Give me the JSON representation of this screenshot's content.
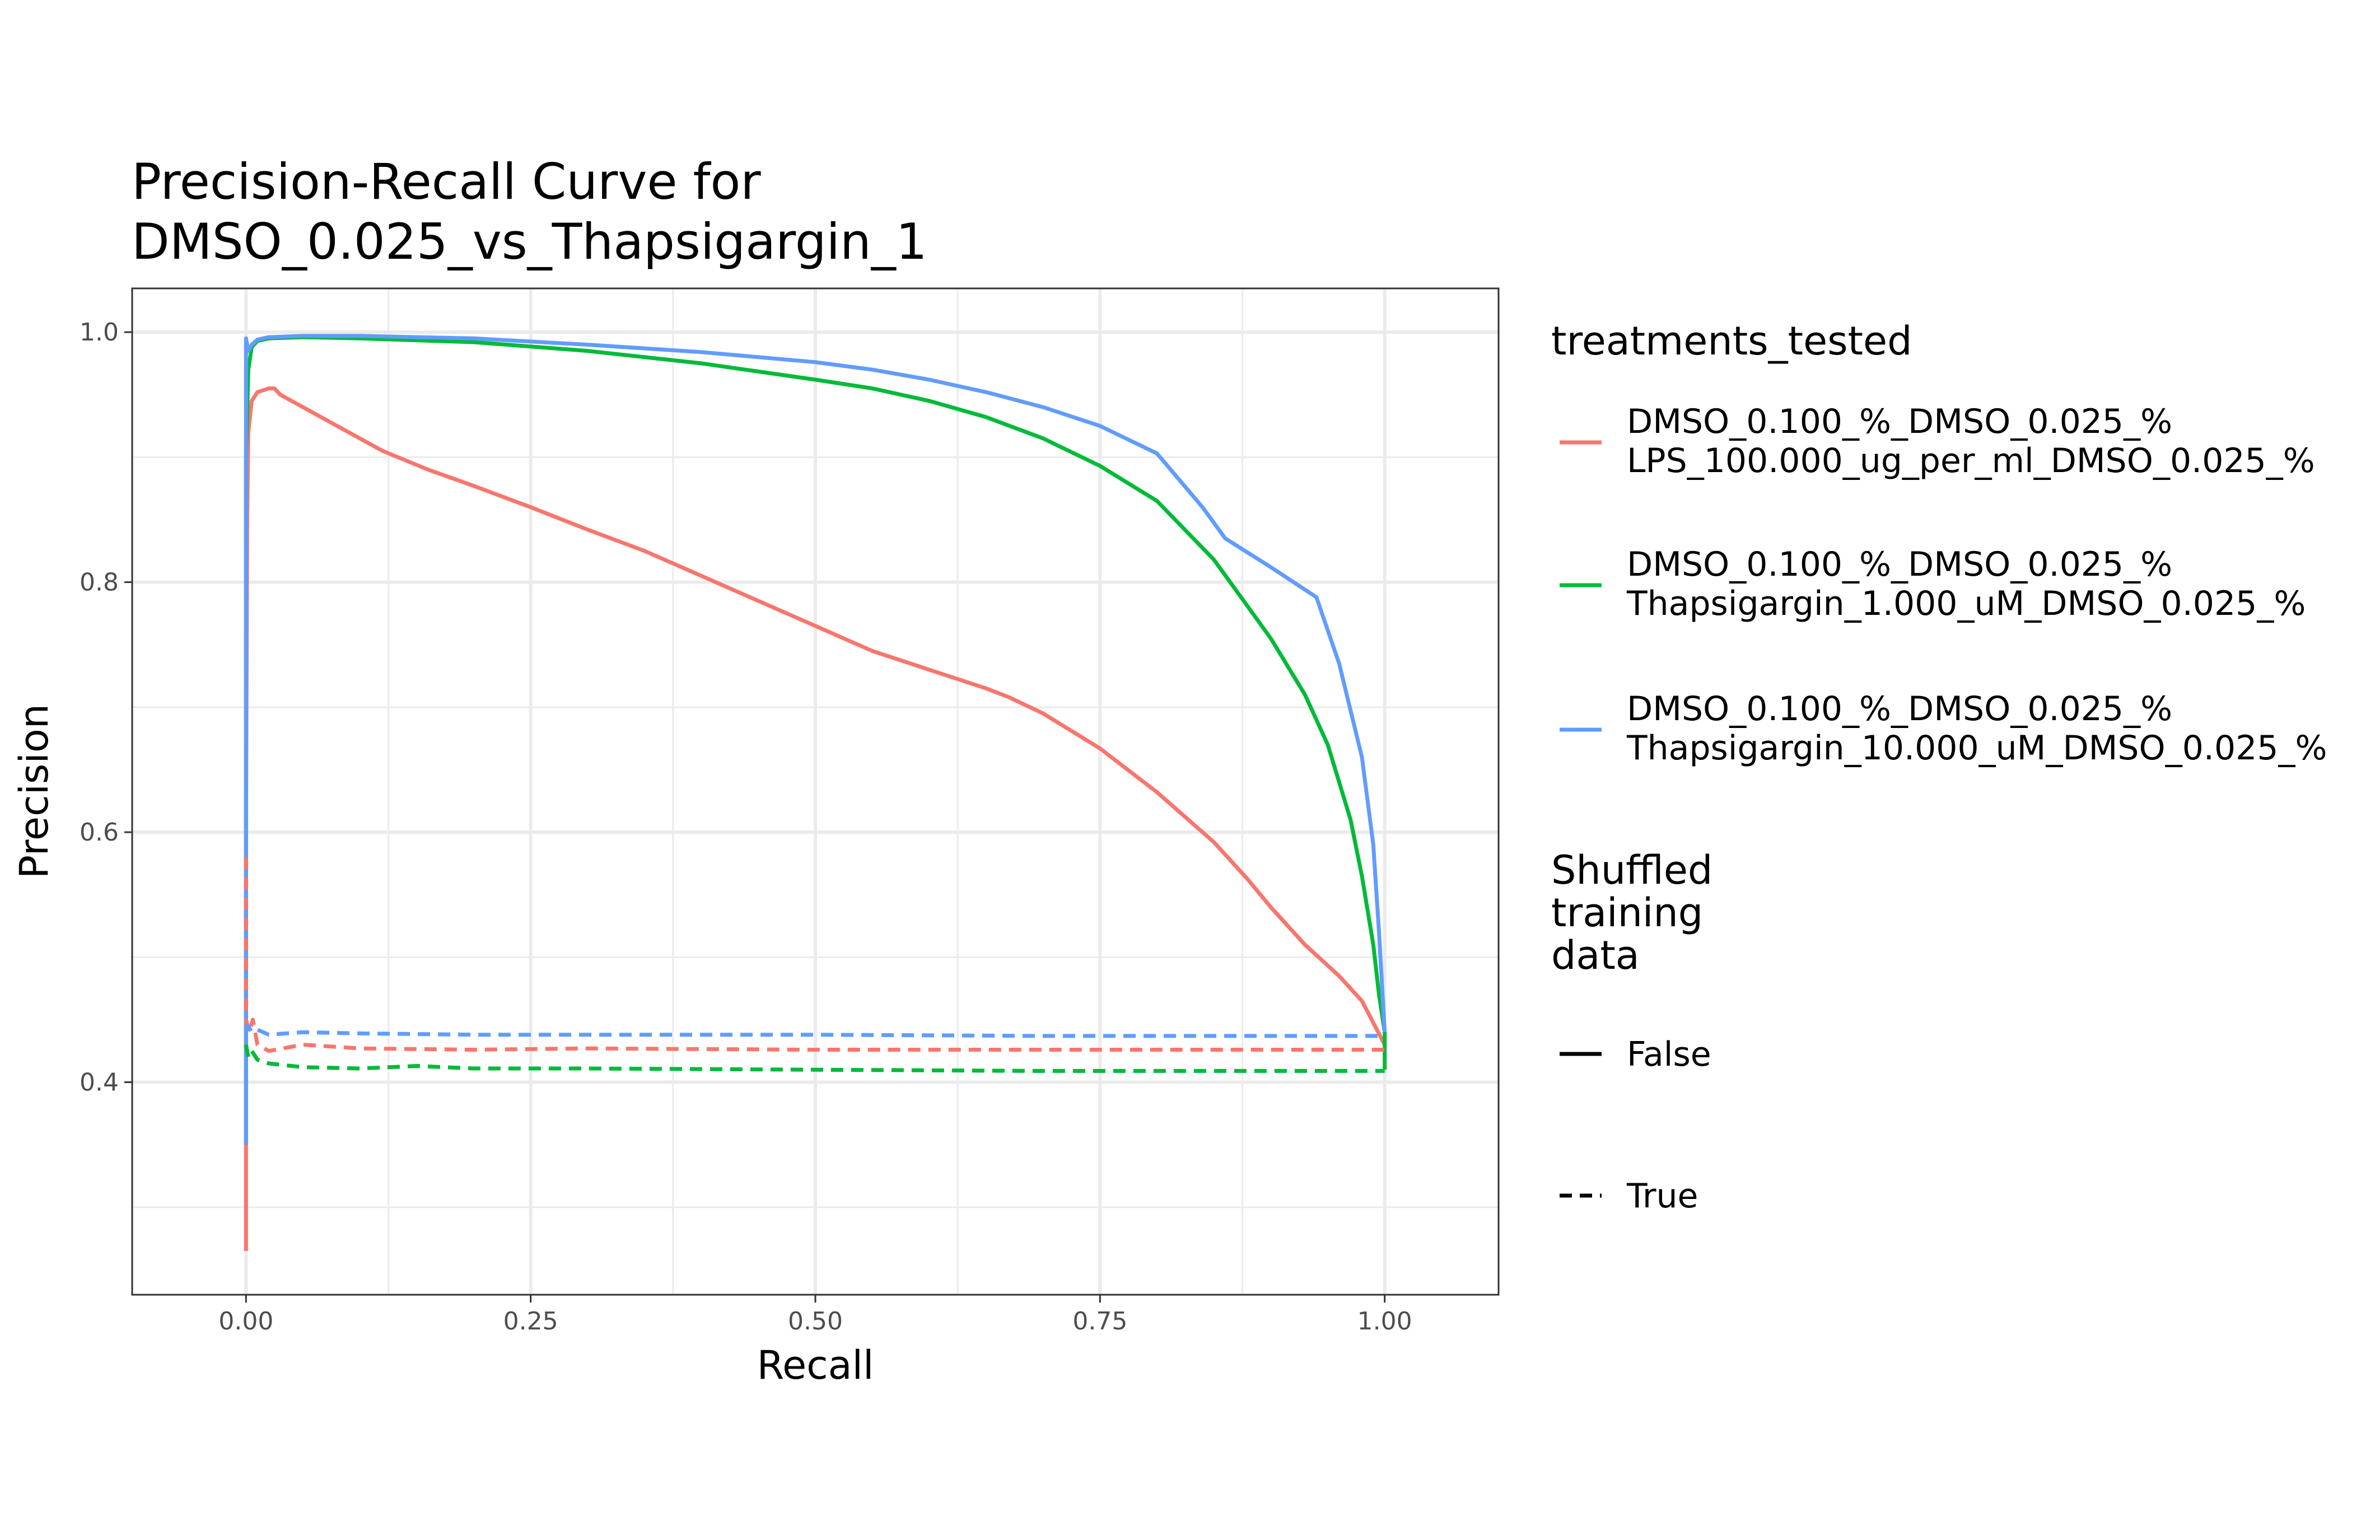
{
  "chart_data": {
    "type": "line",
    "title": [
      "Precision-Recall Curve for",
      "DMSO_0.025_vs_Thapsigargin_1"
    ],
    "xlabel": "Recall",
    "ylabel": "Precision",
    "xlim": [
      -0.1,
      1.1
    ],
    "ylim": [
      0.23,
      1.035
    ],
    "x_ticks": [
      0.0,
      0.25,
      0.5,
      0.75,
      1.0
    ],
    "x_tick_labels": [
      "0.00",
      "0.25",
      "0.50",
      "0.75",
      "1.00"
    ],
    "y_ticks": [
      0.4,
      0.6,
      0.8,
      1.0
    ],
    "y_tick_labels": [
      "0.4",
      "0.6",
      "0.8",
      "1.0"
    ],
    "grid": true,
    "legend": {
      "placement": "right",
      "color_title": "treatments_tested",
      "color_entries": [
        {
          "lines": [
            "DMSO_0.100_%_DMSO_0.025_%",
            "LPS_100.000_ug_per_ml_DMSO_0.025_%"
          ],
          "color": "#F8766D"
        },
        {
          "lines": [
            "DMSO_0.100_%_DMSO_0.025_%",
            "Thapsigargin_1.000_uM_DMSO_0.025_%"
          ],
          "color": "#00BA38"
        },
        {
          "lines": [
            "DMSO_0.100_%_DMSO_0.025_%",
            "Thapsigargin_10.000_uM_DMSO_0.025_%"
          ],
          "color": "#619CFF"
        }
      ],
      "linetype_title": [
        "Shuffled",
        "training",
        "data"
      ],
      "linetype_entries": [
        {
          "label": "False",
          "dash": "solid"
        },
        {
          "label": "True",
          "dash": "dashed"
        }
      ]
    },
    "series": [
      {
        "treatment": "LPS",
        "shuffled": "False",
        "color": "#F8766D",
        "dash": "solid",
        "x": [
          0.0,
          0.0,
          0.001,
          0.002,
          0.005,
          0.01,
          0.02,
          0.025,
          0.03,
          0.05,
          0.08,
          0.12,
          0.16,
          0.2,
          0.25,
          0.3,
          0.35,
          0.4,
          0.45,
          0.5,
          0.55,
          0.6,
          0.65,
          0.67,
          0.7,
          0.75,
          0.8,
          0.85,
          0.88,
          0.9,
          0.93,
          0.96,
          0.98,
          1.0
        ],
        "y": [
          0.265,
          0.6,
          0.85,
          0.92,
          0.945,
          0.952,
          0.955,
          0.955,
          0.95,
          0.94,
          0.925,
          0.905,
          0.89,
          0.877,
          0.86,
          0.842,
          0.825,
          0.805,
          0.785,
          0.765,
          0.745,
          0.73,
          0.715,
          0.708,
          0.695,
          0.667,
          0.632,
          0.592,
          0.562,
          0.54,
          0.51,
          0.485,
          0.465,
          0.43
        ]
      },
      {
        "treatment": "Thapsigargin 1",
        "shuffled": "False",
        "color": "#00BA38",
        "dash": "solid",
        "x": [
          0.0,
          0.0,
          0.002,
          0.005,
          0.01,
          0.02,
          0.05,
          0.1,
          0.2,
          0.3,
          0.4,
          0.5,
          0.55,
          0.6,
          0.65,
          0.7,
          0.75,
          0.8,
          0.85,
          0.9,
          0.93,
          0.95,
          0.97,
          0.98,
          0.99,
          0.995,
          1.0,
          1.0
        ],
        "y": [
          0.35,
          0.9,
          0.97,
          0.988,
          0.993,
          0.995,
          0.996,
          0.995,
          0.992,
          0.985,
          0.975,
          0.962,
          0.955,
          0.945,
          0.932,
          0.915,
          0.893,
          0.865,
          0.818,
          0.755,
          0.71,
          0.67,
          0.61,
          0.565,
          0.51,
          0.47,
          0.44,
          0.41
        ]
      },
      {
        "treatment": "Thapsigargin 10",
        "shuffled": "False",
        "color": "#619CFF",
        "dash": "solid",
        "x": [
          0.0,
          0.0,
          0.002,
          0.005,
          0.01,
          0.02,
          0.05,
          0.1,
          0.2,
          0.3,
          0.4,
          0.5,
          0.55,
          0.6,
          0.65,
          0.7,
          0.75,
          0.8,
          0.84,
          0.86,
          0.9,
          0.94,
          0.96,
          0.98,
          0.99,
          0.995,
          1.0
        ],
        "y": [
          0.35,
          0.995,
          0.985,
          0.99,
          0.994,
          0.996,
          0.997,
          0.997,
          0.995,
          0.99,
          0.984,
          0.976,
          0.97,
          0.962,
          0.952,
          0.94,
          0.925,
          0.903,
          0.86,
          0.835,
          0.812,
          0.788,
          0.735,
          0.66,
          0.59,
          0.52,
          0.44
        ]
      },
      {
        "treatment": "LPS",
        "shuffled": "True",
        "color": "#F8766D",
        "dash": "dashed",
        "x": [
          0.0,
          0.0,
          0.003,
          0.006,
          0.01,
          0.02,
          0.05,
          0.1,
          0.2,
          0.3,
          0.5,
          0.7,
          0.9,
          1.0
        ],
        "y": [
          0.58,
          0.45,
          0.44,
          0.45,
          0.43,
          0.425,
          0.43,
          0.427,
          0.426,
          0.427,
          0.426,
          0.426,
          0.426,
          0.426
        ]
      },
      {
        "treatment": "Thapsigargin 1",
        "shuffled": "True",
        "color": "#00BA38",
        "dash": "dashed",
        "x": [
          0.0,
          0.002,
          0.005,
          0.01,
          0.02,
          0.05,
          0.1,
          0.15,
          0.2,
          0.3,
          0.5,
          0.7,
          0.9,
          1.0
        ],
        "y": [
          0.43,
          0.42,
          0.425,
          0.418,
          0.415,
          0.412,
          0.411,
          0.413,
          0.411,
          0.411,
          0.41,
          0.409,
          0.409,
          0.409
        ]
      },
      {
        "treatment": "Thapsigargin 10",
        "shuffled": "True",
        "color": "#619CFF",
        "dash": "dashed",
        "x": [
          0.0,
          0.002,
          0.005,
          0.01,
          0.02,
          0.05,
          0.1,
          0.2,
          0.3,
          0.5,
          0.7,
          0.9,
          1.0
        ],
        "y": [
          0.44,
          0.445,
          0.44,
          0.442,
          0.438,
          0.44,
          0.439,
          0.438,
          0.438,
          0.438,
          0.437,
          0.437,
          0.437
        ]
      }
    ]
  }
}
